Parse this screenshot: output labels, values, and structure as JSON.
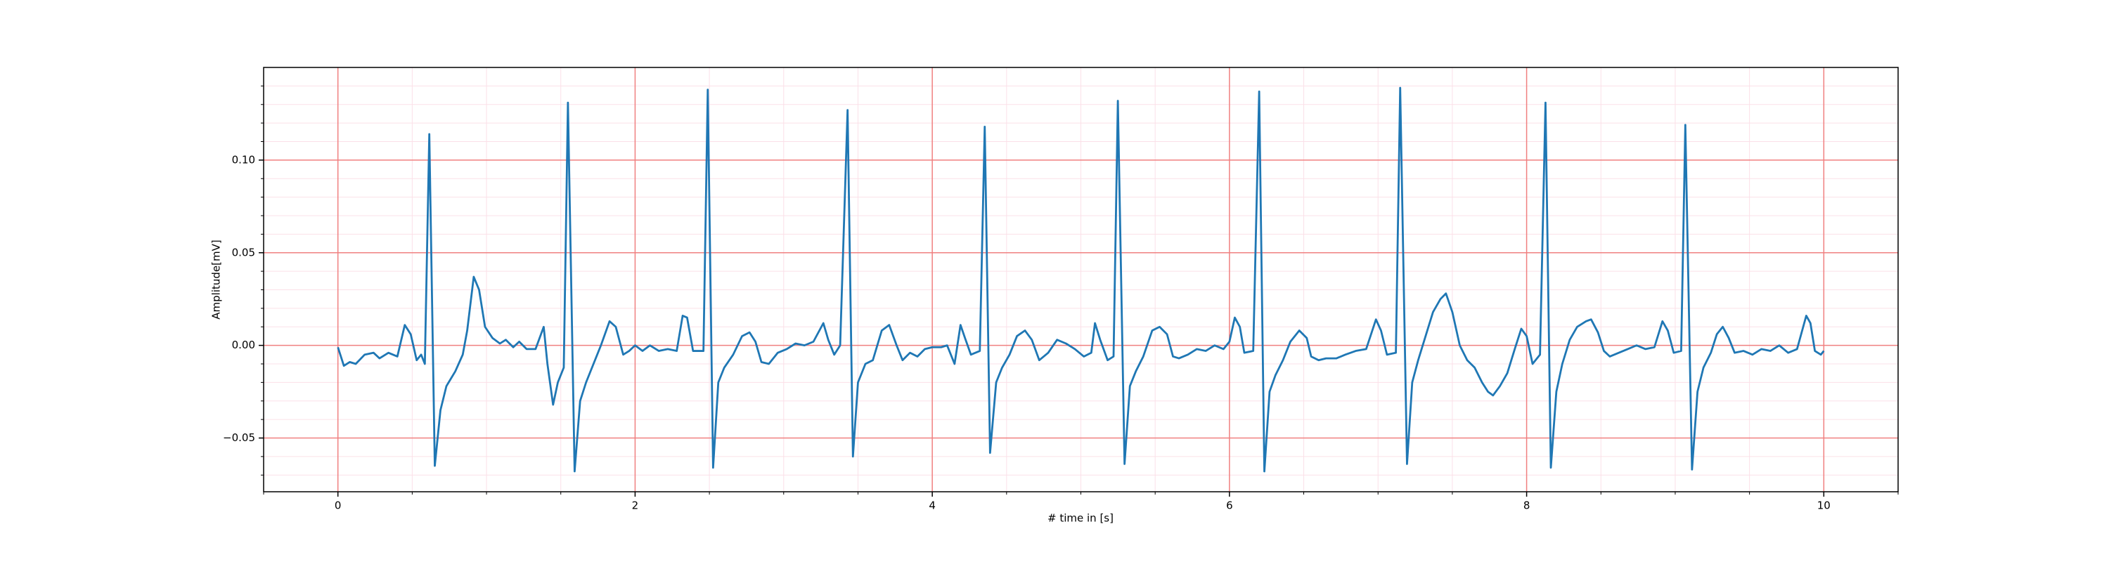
{
  "chart_data": {
    "type": "line",
    "xlabel": "# time in [s]",
    "ylabel": "Amplitude[mV]",
    "xlim": [
      -0.5,
      10.5
    ],
    "ylim": [
      -0.079,
      0.15
    ],
    "xticks": [
      0,
      2,
      4,
      6,
      8,
      10
    ],
    "yticks": [
      {
        "value": -0.05,
        "label": "−0.05"
      },
      {
        "value": 0,
        "label": "0.00"
      },
      {
        "value": 0.05,
        "label": "0.05"
      },
      {
        "value": 0.1,
        "label": "0.10"
      }
    ],
    "xminorticks": [
      -0.5,
      0.5,
      1,
      1.5,
      2.5,
      3,
      3.5,
      4.5,
      5,
      5.5,
      6.5,
      7,
      7.5,
      8.5,
      9,
      9.5,
      10.5
    ],
    "yminorticks": [
      -0.07,
      -0.06,
      -0.04,
      -0.03,
      -0.02,
      -0.01,
      0.01,
      0.02,
      0.03,
      0.04,
      0.06,
      0.07,
      0.08,
      0.09,
      0.11,
      0.12,
      0.13,
      0.14
    ],
    "grid": true,
    "grid_color": "#f08080",
    "minor_grid_color": "#fbe0e8",
    "x": [
      0,
      0.04,
      0.08,
      0.12,
      0.18,
      0.24,
      0.28,
      0.34,
      0.4,
      0.45,
      0.49,
      0.53,
      0.56,
      0.585,
      0.615,
      0.652,
      0.69,
      0.73,
      0.79,
      0.84,
      0.87,
      0.914,
      0.95,
      0.99,
      1.04,
      1.09,
      1.13,
      1.18,
      1.22,
      1.27,
      1.33,
      1.385,
      1.41,
      1.448,
      1.48,
      1.52,
      1.548,
      1.593,
      1.63,
      1.67,
      1.72,
      1.77,
      1.828,
      1.87,
      1.92,
      1.96,
      2.0,
      2.05,
      2.1,
      2.16,
      2.22,
      2.28,
      2.32,
      2.35,
      2.39,
      2.46,
      2.489,
      2.525,
      2.56,
      2.6,
      2.66,
      2.72,
      2.77,
      2.81,
      2.85,
      2.9,
      2.96,
      3.02,
      3.08,
      3.14,
      3.2,
      3.267,
      3.3,
      3.34,
      3.38,
      3.43,
      3.466,
      3.5,
      3.55,
      3.6,
      3.66,
      3.71,
      3.76,
      3.8,
      3.85,
      3.9,
      3.95,
      4.0,
      4.06,
      4.1,
      4.15,
      4.19,
      4.22,
      4.26,
      4.32,
      4.353,
      4.389,
      4.43,
      4.47,
      4.52,
      4.57,
      4.624,
      4.67,
      4.72,
      4.78,
      4.84,
      4.9,
      4.96,
      5.02,
      5.07,
      5.095,
      5.13,
      5.18,
      5.22,
      5.249,
      5.294,
      5.33,
      5.37,
      5.42,
      5.48,
      5.53,
      5.58,
      5.62,
      5.66,
      5.72,
      5.78,
      5.84,
      5.9,
      5.96,
      6.0,
      6.036,
      6.07,
      6.1,
      6.16,
      6.2,
      6.235,
      6.27,
      6.31,
      6.36,
      6.41,
      6.47,
      6.52,
      6.55,
      6.6,
      6.65,
      6.72,
      6.78,
      6.85,
      6.92,
      6.986,
      7.02,
      7.06,
      7.12,
      7.149,
      7.195,
      7.23,
      7.27,
      7.32,
      7.37,
      7.42,
      7.457,
      7.5,
      7.55,
      7.6,
      7.65,
      7.7,
      7.74,
      7.774,
      7.82,
      7.87,
      7.92,
      7.964,
      8.0,
      8.04,
      8.09,
      8.127,
      8.163,
      8.2,
      8.24,
      8.29,
      8.34,
      8.4,
      8.434,
      8.48,
      8.52,
      8.56,
      8.62,
      8.68,
      8.74,
      8.8,
      8.86,
      8.914,
      8.95,
      8.99,
      9.04,
      9.068,
      9.113,
      9.15,
      9.19,
      9.24,
      9.28,
      9.32,
      9.36,
      9.4,
      9.46,
      9.52,
      9.58,
      9.64,
      9.7,
      9.76,
      9.82,
      9.882,
      9.91,
      9.94,
      9.98,
      10.0
    ],
    "series": [
      {
        "color": "#1f77b4",
        "values": [
          -0.001,
          -0.011,
          -0.009,
          -0.01,
          -0.005,
          -0.004,
          -0.007,
          -0.004,
          -0.006,
          0.011,
          0.006,
          -0.008,
          -0.005,
          -0.01,
          0.114,
          -0.065,
          -0.035,
          -0.022,
          -0.014,
          -0.005,
          0.008,
          0.037,
          0.03,
          0.01,
          0.004,
          0.001,
          0.003,
          -0.001,
          0.002,
          -0.002,
          -0.002,
          0.01,
          -0.01,
          -0.032,
          -0.02,
          -0.012,
          0.131,
          -0.068,
          -0.03,
          -0.02,
          -0.01,
          0.0,
          0.013,
          0.01,
          -0.005,
          -0.003,
          0.0,
          -0.003,
          0.0,
          -0.003,
          -0.002,
          -0.003,
          0.016,
          0.015,
          -0.003,
          -0.003,
          0.138,
          -0.066,
          -0.02,
          -0.012,
          -0.005,
          0.005,
          0.007,
          0.002,
          -0.009,
          -0.01,
          -0.004,
          -0.002,
          0.001,
          0.0,
          0.002,
          0.012,
          0.003,
          -0.005,
          0.0,
          0.127,
          -0.06,
          -0.02,
          -0.01,
          -0.008,
          0.008,
          0.011,
          0.0,
          -0.008,
          -0.004,
          -0.006,
          -0.002,
          -0.001,
          -0.001,
          0.0,
          -0.01,
          0.011,
          0.004,
          -0.005,
          -0.003,
          0.118,
          -0.058,
          -0.02,
          -0.012,
          -0.005,
          0.005,
          0.008,
          0.003,
          -0.008,
          -0.004,
          0.003,
          0.001,
          -0.002,
          -0.006,
          -0.004,
          0.012,
          0.003,
          -0.008,
          -0.006,
          0.132,
          -0.064,
          -0.022,
          -0.014,
          -0.006,
          0.008,
          0.01,
          0.006,
          -0.006,
          -0.007,
          -0.005,
          -0.002,
          -0.003,
          0.0,
          -0.002,
          0.002,
          0.015,
          0.01,
          -0.004,
          -0.003,
          0.137,
          -0.068,
          -0.025,
          -0.016,
          -0.008,
          0.002,
          0.008,
          0.004,
          -0.006,
          -0.008,
          -0.007,
          -0.007,
          -0.005,
          -0.003,
          -0.002,
          0.014,
          0.008,
          -0.005,
          -0.004,
          0.139,
          -0.064,
          -0.02,
          -0.008,
          0.005,
          0.018,
          0.025,
          0.028,
          0.018,
          0.0,
          -0.008,
          -0.012,
          -0.02,
          -0.025,
          -0.027,
          -0.022,
          -0.015,
          -0.002,
          0.009,
          0.005,
          -0.01,
          -0.005,
          0.131,
          -0.066,
          -0.025,
          -0.01,
          0.003,
          0.01,
          0.013,
          0.014,
          0.007,
          -0.003,
          -0.006,
          -0.004,
          -0.002,
          0.0,
          -0.002,
          -0.001,
          0.013,
          0.008,
          -0.004,
          -0.003,
          0.119,
          -0.067,
          -0.025,
          -0.012,
          -0.004,
          0.006,
          0.01,
          0.004,
          -0.004,
          -0.003,
          -0.005,
          -0.002,
          -0.003,
          0.0,
          -0.004,
          -0.002,
          0.016,
          0.012,
          -0.003,
          -0.005,
          -0.003
        ]
      }
    ]
  }
}
